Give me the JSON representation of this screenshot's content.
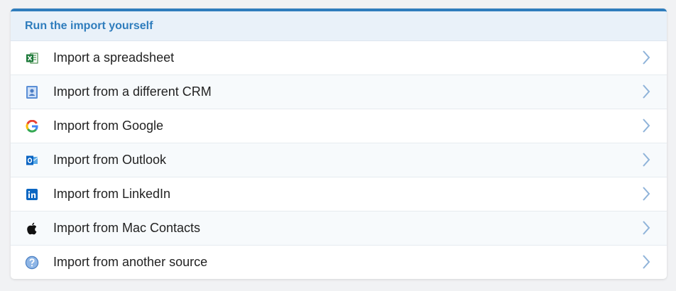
{
  "panel": {
    "title": "Run the import yourself",
    "accent_color": "#2f7dbd",
    "items": [
      {
        "label": "Import a spreadsheet",
        "icon": "excel-icon"
      },
      {
        "label": "Import from a different CRM",
        "icon": "contact-card-icon"
      },
      {
        "label": "Import from Google",
        "icon": "google-icon"
      },
      {
        "label": "Import from Outlook",
        "icon": "outlook-icon"
      },
      {
        "label": "Import from LinkedIn",
        "icon": "linkedin-icon"
      },
      {
        "label": "Import from Mac Contacts",
        "icon": "apple-icon"
      },
      {
        "label": "Import from another source",
        "icon": "question-icon"
      }
    ]
  }
}
